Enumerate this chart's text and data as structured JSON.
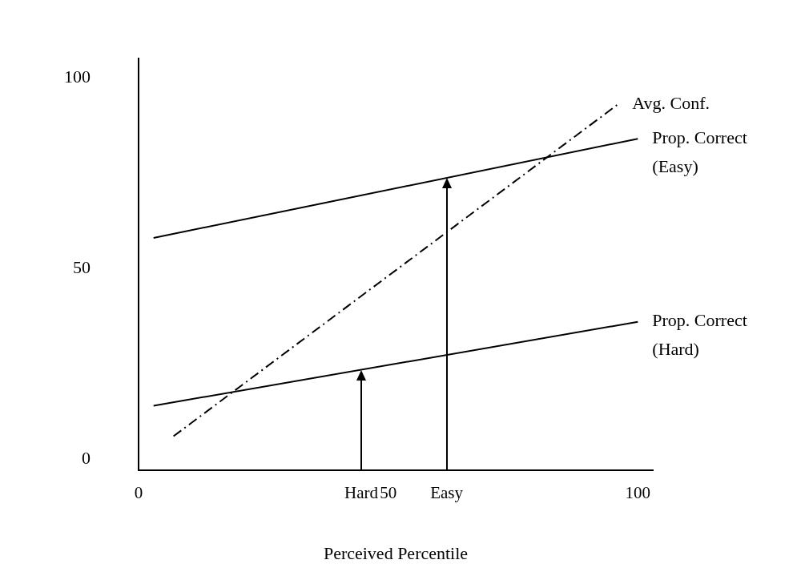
{
  "chart_data": {
    "type": "line",
    "xlabel": "Perceived Percentile",
    "xlim": [
      0,
      103
    ],
    "ylim": [
      -3,
      105
    ],
    "xticks": [
      0,
      {
        "value": 44.6,
        "label": "Hard"
      },
      50,
      {
        "value": 61.7,
        "label": "Easy"
      },
      100
    ],
    "yticks": [
      0,
      50,
      100
    ],
    "legend": false,
    "series": [
      {
        "name": "Avg. Conf.",
        "color": "#000000",
        "x": [
          7,
          96
        ],
        "values": [
          6,
          93
        ],
        "line_style": "dashed"
      },
      {
        "name": "Prop. Correct (Easy)",
        "color": "#000000",
        "x": [
          3,
          100
        ],
        "values": [
          58,
          84
        ],
        "line_style": "solid"
      },
      {
        "name": "Prop. Correct (Hard)",
        "color": "#000000",
        "x": [
          3,
          100
        ],
        "values": [
          14,
          36
        ],
        "line_style": "solid"
      }
    ]
  }
}
